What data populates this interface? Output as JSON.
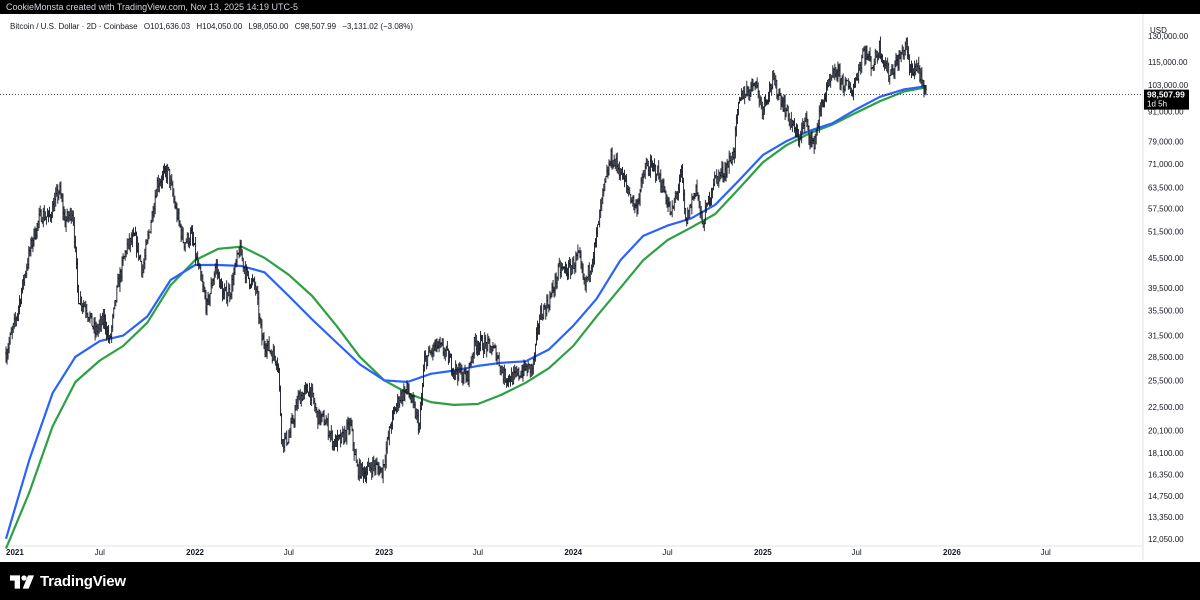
{
  "header": {
    "caption": "CookieMonsta created with TradingView.com, Nov 13, 2025 14:19 UTC-5"
  },
  "legend": {
    "symbol": "Bitcoin / U.S. Dollar · 2D · Coinbase",
    "open": "O101,636.03",
    "high": "H104,050.00",
    "low": "L98,050.00",
    "close": "C98,507.99",
    "change": "−3,131.02 (−3.08%)"
  },
  "axis": {
    "currency": "USD"
  },
  "price_label": {
    "value": "98,507.99",
    "countdown": "1d 5h"
  },
  "footer": {
    "brand": "TradingView"
  },
  "colors": {
    "candles": "#131722",
    "ma_blue": "#2962ff",
    "ma_green": "#2ea043",
    "background": "#ffffff",
    "bars": "#000000"
  },
  "chart_data": {
    "type": "line",
    "scale": "log",
    "y_ticks": [
      130000,
      115000,
      103000,
      91000,
      79000,
      71000,
      63500,
      57500,
      51500,
      45500,
      39500,
      35500,
      31500,
      28500,
      25500,
      22500,
      20100,
      18100,
      16350,
      14750,
      13350,
      12050
    ],
    "y_tick_labels": [
      "130,000.00",
      "115,000.00",
      "103,000.00",
      "91,000.00",
      "79,000.00",
      "71,000.00",
      "63,500.00",
      "57,500.00",
      "51,500.00",
      "45,500.00",
      "39,500.00",
      "35,500.00",
      "31,500.00",
      "28,500.00",
      "25,500.00",
      "22,500.00",
      "20,100.00",
      "18,100.00",
      "16,350.00",
      "14,750.00",
      "13,350.00",
      "12,050.00"
    ],
    "x_ticks": [
      {
        "date": "2021-01-01",
        "label": "2021"
      },
      {
        "date": "2021-07-01",
        "label": "Jul"
      },
      {
        "date": "2022-01-01",
        "label": "2022"
      },
      {
        "date": "2022-07-01",
        "label": "Jul"
      },
      {
        "date": "2023-01-01",
        "label": "2023"
      },
      {
        "date": "2023-07-01",
        "label": "Jul"
      },
      {
        "date": "2024-01-01",
        "label": "2024"
      },
      {
        "date": "2024-07-01",
        "label": "Jul"
      },
      {
        "date": "2025-01-01",
        "label": "2025"
      },
      {
        "date": "2025-07-01",
        "label": "Jul"
      },
      {
        "date": "2026-01-01",
        "label": "2026"
      },
      {
        "date": "2026-07-01",
        "label": "Jul"
      }
    ],
    "x_range": [
      "2021-01-01",
      "2027-01-01"
    ],
    "current_price": 98507.99,
    "series": [
      {
        "color": "#131722",
        "style": "bars",
        "points": [
          [
            "2021-01-01",
            29000
          ],
          [
            "2021-01-20",
            34000
          ],
          [
            "2021-02-10",
            44000
          ],
          [
            "2021-02-22",
            50000
          ],
          [
            "2021-03-10",
            56000
          ],
          [
            "2021-03-25",
            55000
          ],
          [
            "2021-04-14",
            63000
          ],
          [
            "2021-04-25",
            54000
          ],
          [
            "2021-05-10",
            57000
          ],
          [
            "2021-05-20",
            38000
          ],
          [
            "2021-06-05",
            36000
          ],
          [
            "2021-06-22",
            32000
          ],
          [
            "2021-07-10",
            34000
          ],
          [
            "2021-07-20",
            30500
          ],
          [
            "2021-08-05",
            40000
          ],
          [
            "2021-08-22",
            48000
          ],
          [
            "2021-09-07",
            50000
          ],
          [
            "2021-09-22",
            43000
          ],
          [
            "2021-10-10",
            56000
          ],
          [
            "2021-10-20",
            65000
          ],
          [
            "2021-11-10",
            68500
          ],
          [
            "2021-11-25",
            57000
          ],
          [
            "2021-12-10",
            49000
          ],
          [
            "2021-12-25",
            50500
          ],
          [
            "2022-01-10",
            42000
          ],
          [
            "2022-01-24",
            36000
          ],
          [
            "2022-02-10",
            44000
          ],
          [
            "2022-02-24",
            38000
          ],
          [
            "2022-03-10",
            39000
          ],
          [
            "2022-03-28",
            47500
          ],
          [
            "2022-04-10",
            42000
          ],
          [
            "2022-04-28",
            39500
          ],
          [
            "2022-05-10",
            31000
          ],
          [
            "2022-05-25",
            29500
          ],
          [
            "2022-06-10",
            28000
          ],
          [
            "2022-06-18",
            19000
          ],
          [
            "2022-07-01",
            19500
          ],
          [
            "2022-07-20",
            23500
          ],
          [
            "2022-08-10",
            24500
          ],
          [
            "2022-08-25",
            21500
          ],
          [
            "2022-09-10",
            21000
          ],
          [
            "2022-09-25",
            19000
          ],
          [
            "2022-10-10",
            19200
          ],
          [
            "2022-10-28",
            20700
          ],
          [
            "2022-11-09",
            16800
          ],
          [
            "2022-11-25",
            16500
          ],
          [
            "2022-12-10",
            17100
          ],
          [
            "2022-12-28",
            16600
          ],
          [
            "2023-01-15",
            21000
          ],
          [
            "2023-01-30",
            23500
          ],
          [
            "2023-02-15",
            24500
          ],
          [
            "2023-03-10",
            20500
          ],
          [
            "2023-03-20",
            28000
          ],
          [
            "2023-04-12",
            30000
          ],
          [
            "2023-04-28",
            29300
          ],
          [
            "2023-05-15",
            27000
          ],
          [
            "2023-06-10",
            25800
          ],
          [
            "2023-06-25",
            30500
          ],
          [
            "2023-07-15",
            30200
          ],
          [
            "2023-08-05",
            29100
          ],
          [
            "2023-08-20",
            26000
          ],
          [
            "2023-09-10",
            25800
          ],
          [
            "2023-09-28",
            26900
          ],
          [
            "2023-10-15",
            27000
          ],
          [
            "2023-10-28",
            34500
          ],
          [
            "2023-11-15",
            37000
          ],
          [
            "2023-12-05",
            43000
          ],
          [
            "2023-12-25",
            43000
          ],
          [
            "2024-01-11",
            46000
          ],
          [
            "2024-01-23",
            39500
          ],
          [
            "2024-02-12",
            48000
          ],
          [
            "2024-02-28",
            62000
          ],
          [
            "2024-03-14",
            73000
          ],
          [
            "2024-03-28",
            70000
          ],
          [
            "2024-04-15",
            63000
          ],
          [
            "2024-05-01",
            57500
          ],
          [
            "2024-05-20",
            70000
          ],
          [
            "2024-06-10",
            69000
          ],
          [
            "2024-06-28",
            61000
          ],
          [
            "2024-07-08",
            55500
          ],
          [
            "2024-07-28",
            68000
          ],
          [
            "2024-08-05",
            53500
          ],
          [
            "2024-08-25",
            64000
          ],
          [
            "2024-09-06",
            53000
          ],
          [
            "2024-09-28",
            65500
          ],
          [
            "2024-10-20",
            69000
          ],
          [
            "2024-11-06",
            75000
          ],
          [
            "2024-11-13",
            90000
          ],
          [
            "2024-11-22",
            99000
          ],
          [
            "2024-12-05",
            100500
          ],
          [
            "2024-12-17",
            106000
          ],
          [
            "2024-12-30",
            92500
          ],
          [
            "2025-01-20",
            105000
          ],
          [
            "2025-02-05",
            97000
          ],
          [
            "2025-02-25",
            86000
          ],
          [
            "2025-03-10",
            80000
          ],
          [
            "2025-03-25",
            87000
          ],
          [
            "2025-04-08",
            77000
          ],
          [
            "2025-04-25",
            94500
          ],
          [
            "2025-05-10",
            103500
          ],
          [
            "2025-05-22",
            110000
          ],
          [
            "2025-06-05",
            104000
          ],
          [
            "2025-06-22",
            100000
          ],
          [
            "2025-07-10",
            116000
          ],
          [
            "2025-07-14",
            122000
          ],
          [
            "2025-08-01",
            113000
          ],
          [
            "2025-08-14",
            123500
          ],
          [
            "2025-09-01",
            108500
          ],
          [
            "2025-09-20",
            116000
          ],
          [
            "2025-10-06",
            125000
          ],
          [
            "2025-10-11",
            110000
          ],
          [
            "2025-10-28",
            113000
          ],
          [
            "2025-11-05",
            101000
          ],
          [
            "2025-11-13",
            98507.99
          ]
        ]
      },
      {
        "color": "#2962ff",
        "points": [
          [
            "2021-01-01",
            12050
          ],
          [
            "2021-02-15",
            17500
          ],
          [
            "2021-04-01",
            24000
          ],
          [
            "2021-05-15",
            28500
          ],
          [
            "2021-07-01",
            30700
          ],
          [
            "2021-08-15",
            31500
          ],
          [
            "2021-10-01",
            34500
          ],
          [
            "2021-11-15",
            41000
          ],
          [
            "2022-01-01",
            44000
          ],
          [
            "2022-02-15",
            44000
          ],
          [
            "2022-04-01",
            43800
          ],
          [
            "2022-05-15",
            42500
          ],
          [
            "2022-07-01",
            38000
          ],
          [
            "2022-08-15",
            34000
          ],
          [
            "2022-10-01",
            30500
          ],
          [
            "2022-11-15",
            27500
          ],
          [
            "2023-01-01",
            25500
          ],
          [
            "2023-02-15",
            25300
          ],
          [
            "2023-04-01",
            26300
          ],
          [
            "2023-05-15",
            26700
          ],
          [
            "2023-07-01",
            27300
          ],
          [
            "2023-08-15",
            27700
          ],
          [
            "2023-10-01",
            27900
          ],
          [
            "2023-11-15",
            29500
          ],
          [
            "2024-01-01",
            33000
          ],
          [
            "2024-02-15",
            37500
          ],
          [
            "2024-04-01",
            45000
          ],
          [
            "2024-05-15",
            50500
          ],
          [
            "2024-07-01",
            53000
          ],
          [
            "2024-08-15",
            54800
          ],
          [
            "2024-10-01",
            58500
          ],
          [
            "2024-11-15",
            65500
          ],
          [
            "2025-01-01",
            74000
          ],
          [
            "2025-02-15",
            79000
          ],
          [
            "2025-04-01",
            83000
          ],
          [
            "2025-05-15",
            86000
          ],
          [
            "2025-07-01",
            92000
          ],
          [
            "2025-08-15",
            97500
          ],
          [
            "2025-10-01",
            101000
          ],
          [
            "2025-11-13",
            102500
          ]
        ]
      },
      {
        "color": "#2ea043",
        "points": [
          [
            "2021-01-01",
            11500
          ],
          [
            "2021-02-15",
            15000
          ],
          [
            "2021-04-01",
            20500
          ],
          [
            "2021-05-15",
            25300
          ],
          [
            "2021-07-01",
            28000
          ],
          [
            "2021-08-15",
            30000
          ],
          [
            "2021-10-01",
            33500
          ],
          [
            "2021-11-15",
            40000
          ],
          [
            "2022-01-01",
            45000
          ],
          [
            "2022-02-15",
            47500
          ],
          [
            "2022-04-01",
            48000
          ],
          [
            "2022-05-15",
            45500
          ],
          [
            "2022-07-01",
            42000
          ],
          [
            "2022-08-15",
            38000
          ],
          [
            "2022-10-01",
            33000
          ],
          [
            "2022-11-15",
            28500
          ],
          [
            "2023-01-01",
            25500
          ],
          [
            "2023-02-15",
            24000
          ],
          [
            "2023-04-01",
            23000
          ],
          [
            "2023-05-15",
            22700
          ],
          [
            "2023-07-01",
            22800
          ],
          [
            "2023-08-15",
            23800
          ],
          [
            "2023-10-01",
            25200
          ],
          [
            "2023-11-15",
            27000
          ],
          [
            "2024-01-01",
            30000
          ],
          [
            "2024-02-15",
            34500
          ],
          [
            "2024-04-01",
            39500
          ],
          [
            "2024-05-15",
            45000
          ],
          [
            "2024-07-01",
            49500
          ],
          [
            "2024-08-15",
            52500
          ],
          [
            "2024-10-01",
            56000
          ],
          [
            "2024-11-15",
            63000
          ],
          [
            "2025-01-01",
            71500
          ],
          [
            "2025-02-15",
            77500
          ],
          [
            "2025-04-01",
            82000
          ],
          [
            "2025-05-15",
            85500
          ],
          [
            "2025-07-01",
            90500
          ],
          [
            "2025-08-15",
            95500
          ],
          [
            "2025-10-01",
            100000
          ],
          [
            "2025-11-13",
            102000
          ]
        ]
      }
    ]
  }
}
